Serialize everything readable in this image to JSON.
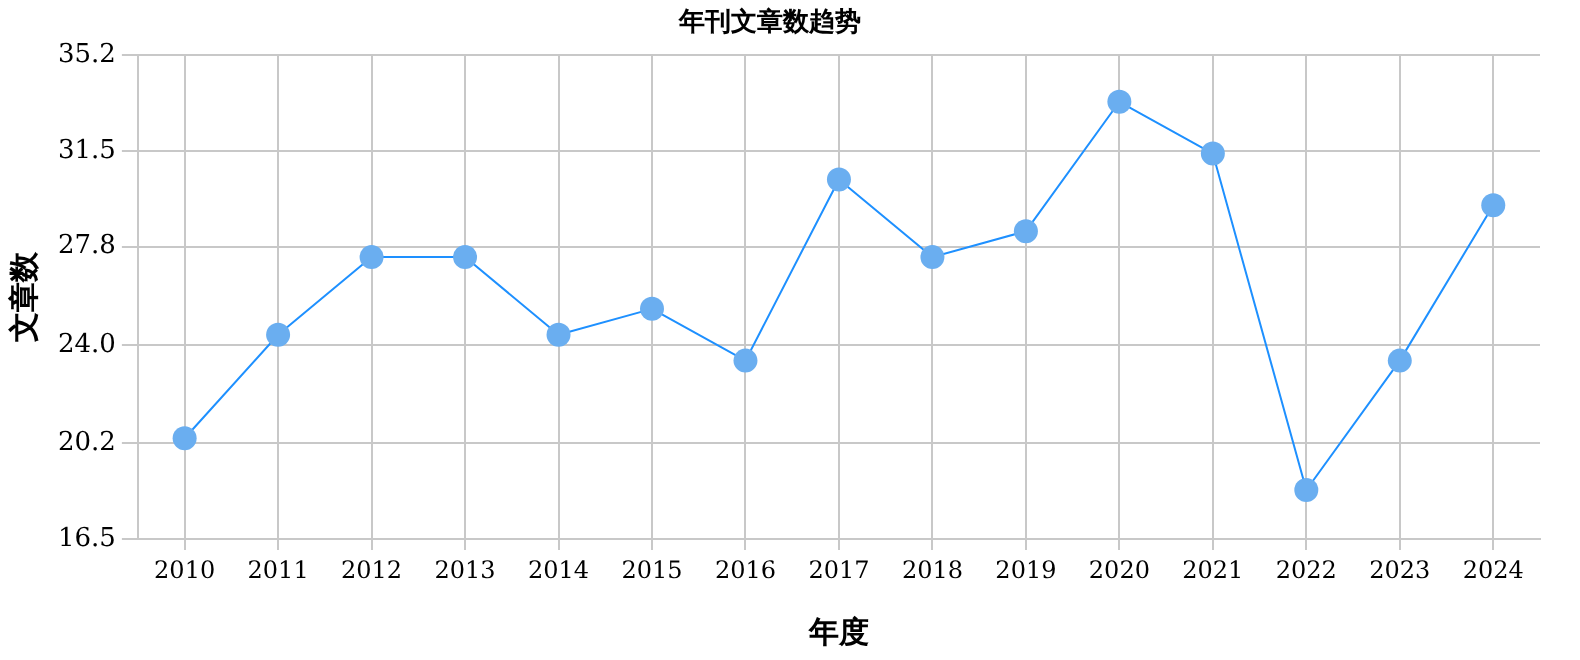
{
  "chart_data": {
    "type": "line",
    "title": "年刊文章数趋势",
    "xlabel": "年度",
    "ylabel": "文章数",
    "categories": [
      "2010",
      "2011",
      "2012",
      "2013",
      "2014",
      "2015",
      "2016",
      "2017",
      "2018",
      "2019",
      "2020",
      "2021",
      "2022",
      "2023",
      "2024"
    ],
    "series": [
      {
        "color": "#1e90ff",
        "values": [
          20.4,
          24.4,
          27.4,
          27.4,
          24.4,
          25.4,
          23.4,
          30.4,
          27.4,
          28.4,
          33.4,
          31.4,
          18.4,
          23.4,
          29.4
        ]
      }
    ],
    "ylim": [
      16.5,
      35.2
    ],
    "yticks": [
      "16.5",
      20.2,
      "24.0",
      27.8,
      31.5,
      35.2
    ],
    "grid": true,
    "legend": false,
    "marker": "circle",
    "line_style": "solid"
  }
}
